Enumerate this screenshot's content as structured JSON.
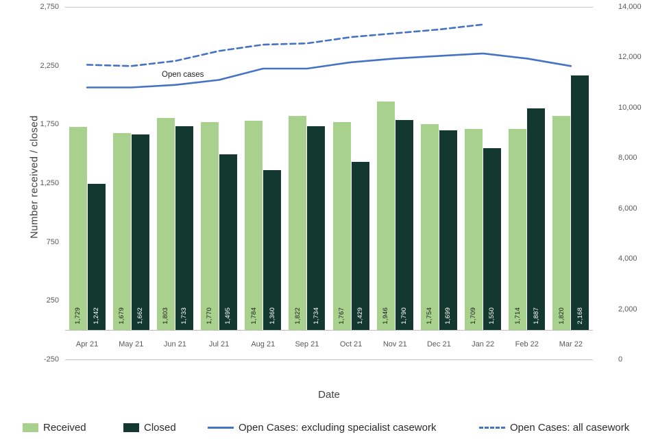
{
  "chart_data": {
    "type": "bar",
    "subtype": "grouped-bars-with-lines",
    "categories": [
      "Apr 21",
      "May 21",
      "Jun 21",
      "Jul 21",
      "Aug 21",
      "Sep 21",
      "Oct 21",
      "Nov 21",
      "Dec 21",
      "Jan 22",
      "Feb 22",
      "Mar 22"
    ],
    "bar_series": [
      {
        "name": "Received",
        "color": "#a9d18e",
        "label_color": "#1a1a1a",
        "values": [
          1729,
          1679,
          1803,
          1770,
          1784,
          1822,
          1767,
          1946,
          1754,
          1709,
          1714,
          1820
        ]
      },
      {
        "name": "Closed",
        "color": "#13382f",
        "label_color": "#ffffff",
        "values": [
          1242,
          1662,
          1733,
          1495,
          1360,
          1734,
          1429,
          1790,
          1699,
          1550,
          1887,
          2168
        ]
      }
    ],
    "line_series": [
      {
        "name": "Open Cases: excluding specialist casework",
        "style": "solid",
        "color": "#4472c4",
        "axis": "right",
        "values": [
          10800,
          10800,
          10900,
          11100,
          11550,
          11550,
          11800,
          11950,
          12050,
          12150,
          11950,
          11650
        ]
      },
      {
        "name": "Open Cases: all casework",
        "style": "dashed",
        "color": "#4472c4",
        "axis": "right",
        "values": [
          11700,
          11650,
          11850,
          12250,
          12500,
          12550,
          12800,
          12950,
          13100,
          13300,
          null,
          null
        ]
      }
    ],
    "left_axis": {
      "title": "Number received / closed",
      "min": -250,
      "max": 2750,
      "tick_values": [
        -250,
        250,
        750,
        1250,
        1750,
        2250,
        2750
      ],
      "ticks": [
        "-250",
        "250",
        "750",
        "1,250",
        "1,750",
        "2,250",
        "2,750"
      ]
    },
    "right_axis": {
      "min": 0,
      "max": 14000,
      "tick_values": [
        0,
        2000,
        4000,
        6000,
        8000,
        10000,
        12000,
        14000
      ],
      "ticks": [
        "0",
        "2,000",
        "4,000",
        "6,000",
        "8,000",
        "10,000",
        "12,000",
        "14,000"
      ]
    },
    "x_axis": {
      "title": "Date"
    },
    "annotation": {
      "text": "Open cases"
    },
    "legend": [
      {
        "label": "Received",
        "type": "swatch",
        "color": "#a9d18e"
      },
      {
        "label": "Closed",
        "type": "swatch",
        "color": "#13382f"
      },
      {
        "label": "Open Cases: excluding specialist casework",
        "type": "line-solid",
        "color": "#4472c4"
      },
      {
        "label": "Open Cases: all casework",
        "type": "line-dashed",
        "color": "#4472c4"
      }
    ],
    "grid": "top, bottom and zero baseline only",
    "legend_position": "bottom",
    "gridline_color": "#c4c4c4"
  }
}
